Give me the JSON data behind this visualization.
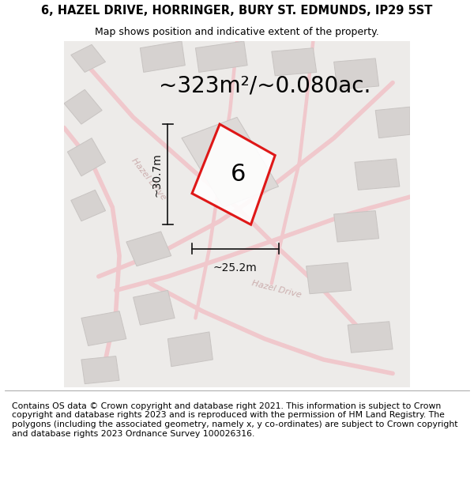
{
  "title_line1": "6, HAZEL DRIVE, HORRINGER, BURY ST. EDMUNDS, IP29 5ST",
  "title_line2": "Map shows position and indicative extent of the property.",
  "footer_text": "Contains OS data © Crown copyright and database right 2021. This information is subject to Crown copyright and database rights 2023 and is reproduced with the permission of HM Land Registry. The polygons (including the associated geometry, namely x, y co-ordinates) are subject to Crown copyright and database rights 2023 Ordnance Survey 100026316.",
  "area_label": "~323m²/~0.080ac.",
  "width_label": "~25.2m",
  "height_label": "~30.7m",
  "plot_number": "6",
  "map_bg": "#edebe9",
  "road_color": "#f0c8cc",
  "road_color2": "#e8b4b8",
  "building_color": "#d6d2d0",
  "building_edge": "#c8c4c2",
  "plot_color": "#dd0000",
  "plot_fill": "#ffffff",
  "road_label_color": "#c8a8a8",
  "dim_color": "#111111",
  "title_fontsize": 10.5,
  "subtitle_fontsize": 9,
  "footer_fontsize": 7.8,
  "area_fontsize": 20,
  "dim_fontsize": 10,
  "plot_num_fontsize": 22
}
